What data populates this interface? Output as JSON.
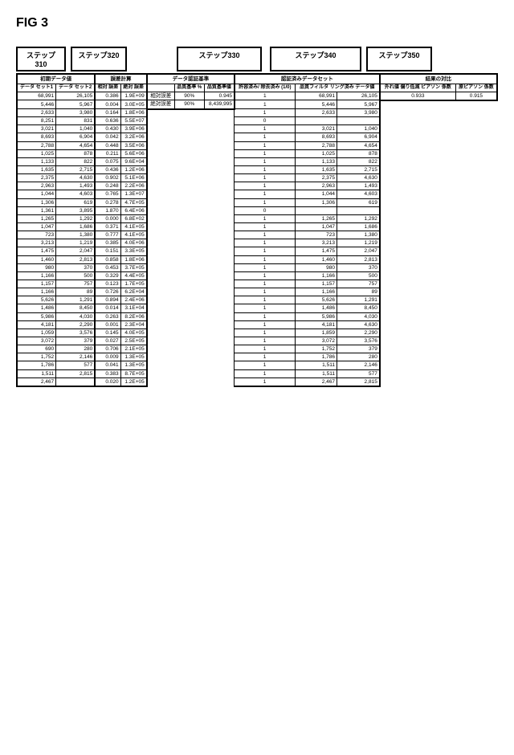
{
  "figLabel": "FIG 3",
  "steps": {
    "s310": "ステップ310",
    "s320": "ステップ320",
    "s330": "ステップ330",
    "s340": "ステップ340",
    "s350": "ステップ350"
  },
  "groupHeaders": {
    "g1": "初期データ値",
    "g2": "誤差計算",
    "g3": "データ認証基準",
    "g4": "認証済みデータセット",
    "g5": "結果の対比"
  },
  "colHeaders": {
    "c1": "データ\nセット1",
    "c2": "データ\nセット2",
    "c3": "相対\n誤差",
    "c4": "絶対\n誤差",
    "c5": "",
    "c6": "品質基準\n%",
    "c7": "品質基準値",
    "c8": "許容済み/\n除去済み\n(1/0)",
    "c9": "品質フィルタ\nリング済み\nデータ値",
    "c10": "",
    "c11": "外れ値\n偏り低減\nピアソン\n係数",
    "c12": "原ピアソン\n係数"
  },
  "criteria": {
    "relLabel": "相対誤差",
    "absLabel": "絶対誤差",
    "relPct": "90%",
    "absPct": "90%",
    "relVal": "0.945",
    "absVal": "8,439,995"
  },
  "pearson": {
    "reduced": "0.933",
    "original": "0.915"
  },
  "rows": [
    {
      "d1": "68,991",
      "d2": "26,105",
      "re": "0.386",
      "ae": "1.9E+09",
      "acc": "1",
      "f1": "68,991",
      "f2": "26,105"
    },
    {
      "d1": "5,446",
      "d2": "5,967",
      "re": "0.004",
      "ae": "3.0E+05",
      "acc": "1",
      "f1": "5,446",
      "f2": "5,967"
    },
    {
      "d1": "2,633",
      "d2": "3,980",
      "re": "0.164",
      "ae": "1.8E+06",
      "acc": "1",
      "f1": "2,633",
      "f2": "3,980"
    },
    {
      "d1": "8,251",
      "d2": "831",
      "re": "0.636",
      "ae": "5.5E+07",
      "acc": "0",
      "f1": "",
      "f2": ""
    },
    {
      "d1": "3,021",
      "d2": "1,040",
      "re": "0.430",
      "ae": "3.9E+06",
      "acc": "1",
      "f1": "3,021",
      "f2": "1,040"
    },
    {
      "d1": "8,693",
      "d2": "6,904",
      "re": "0.042",
      "ae": "3.2E+06",
      "acc": "1",
      "f1": "8,693",
      "f2": "6,904"
    },
    {
      "d1": "2,788",
      "d2": "4,654",
      "re": "0.448",
      "ae": "3.5E+06",
      "acc": "1",
      "f1": "2,788",
      "f2": "4,654"
    },
    {
      "d1": "1,025",
      "d2": "878",
      "re": "0.211",
      "ae": "5.6E+06",
      "acc": "1",
      "f1": "1,025",
      "f2": "878"
    },
    {
      "d1": "1,133",
      "d2": "822",
      "re": "0.075",
      "ae": "9.6E+04",
      "acc": "1",
      "f1": "1,133",
      "f2": "822"
    },
    {
      "d1": "1,635",
      "d2": "2,715",
      "re": "0.436",
      "ae": "1.2E+06",
      "acc": "1",
      "f1": "1,635",
      "f2": "2,715"
    },
    {
      "d1": "2,375",
      "d2": "4,630",
      "re": "0.902",
      "ae": "5.1E+06",
      "acc": "1",
      "f1": "2,375",
      "f2": "4,630"
    },
    {
      "d1": "2,963",
      "d2": "1,493",
      "re": "0.248",
      "ae": "2.2E+06",
      "acc": "1",
      "f1": "2,963",
      "f2": "1,493"
    },
    {
      "d1": "1,044",
      "d2": "4,603",
      "re": "0.765",
      "ae": "1.3E+07",
      "acc": "1",
      "f1": "1,044",
      "f2": "4,603"
    },
    {
      "d1": "1,306",
      "d2": "619",
      "re": "0.278",
      "ae": "4.7E+05",
      "acc": "1",
      "f1": "1,306",
      "f2": "619"
    },
    {
      "d1": "1,361",
      "d2": "3,895",
      "re": "1.870",
      "ae": "6.4E+06",
      "acc": "0",
      "f1": "",
      "f2": ""
    },
    {
      "d1": "1,265",
      "d2": "1,292",
      "re": "0.000",
      "ae": "6.8E+02",
      "acc": "1",
      "f1": "1,265",
      "f2": "1,292"
    },
    {
      "d1": "1,047",
      "d2": "1,686",
      "re": "0.371",
      "ae": "4.1E+05",
      "acc": "1",
      "f1": "1,047",
      "f2": "1,686"
    },
    {
      "d1": "723",
      "d2": "1,380",
      "re": "0.777",
      "ae": "4.1E+05",
      "acc": "1",
      "f1": "723",
      "f2": "1,380"
    },
    {
      "d1": "3,213",
      "d2": "1,219",
      "re": "0.385",
      "ae": "4.0E+06",
      "acc": "1",
      "f1": "3,213",
      "f2": "1,219"
    },
    {
      "d1": "1,475",
      "d2": "2,047",
      "re": "0.151",
      "ae": "3.3E+05",
      "acc": "1",
      "f1": "1,475",
      "f2": "2,047"
    },
    {
      "d1": "1,460",
      "d2": "2,813",
      "re": "0.858",
      "ae": "1.8E+06",
      "acc": "1",
      "f1": "1,460",
      "f2": "2,813"
    },
    {
      "d1": "980",
      "d2": "370",
      "re": "0.453",
      "ae": "3.7E+05",
      "acc": "1",
      "f1": "980",
      "f2": "370"
    },
    {
      "d1": "1,166",
      "d2": "500",
      "re": "0.329",
      "ae": "4.4E+05",
      "acc": "1",
      "f1": "1,166",
      "f2": "500"
    },
    {
      "d1": "1,157",
      "d2": "757",
      "re": "0.123",
      "ae": "1.7E+05",
      "acc": "1",
      "f1": "1,157",
      "f2": "757"
    },
    {
      "d1": "1,166",
      "d2": "89",
      "re": "0.726",
      "ae": "6.2E+04",
      "acc": "1",
      "f1": "1,166",
      "f2": "89"
    },
    {
      "d1": "5,626",
      "d2": "1,291",
      "re": "0.894",
      "ae": "2.4E+06",
      "acc": "1",
      "f1": "5,626",
      "f2": "1,291"
    },
    {
      "d1": "1,486",
      "d2": "8,450",
      "re": "0.014",
      "ae": "3.1E+04",
      "acc": "1",
      "f1": "1,486",
      "f2": "8,450"
    },
    {
      "d1": "5,986",
      "d2": "4,030",
      "re": "0.263",
      "ae": "8.2E+06",
      "acc": "1",
      "f1": "5,986",
      "f2": "4,030"
    },
    {
      "d1": "4,181",
      "d2": "2,290",
      "re": "0.001",
      "ae": "2.3E+04",
      "acc": "1",
      "f1": "4,181",
      "f2": "4,630"
    },
    {
      "d1": "1,059",
      "d2": "3,576",
      "re": "0.145",
      "ae": "4.0E+05",
      "acc": "1",
      "f1": "1,859",
      "f2": "2,290"
    },
    {
      "d1": "3,072",
      "d2": "379",
      "re": "0.027",
      "ae": "2.5E+05",
      "acc": "1",
      "f1": "3,072",
      "f2": "3,576"
    },
    {
      "d1": "690",
      "d2": "280",
      "re": "0.706",
      "ae": "2.1E+05",
      "acc": "1",
      "f1": "1,752",
      "f2": "379"
    },
    {
      "d1": "1,752",
      "d2": "2,146",
      "re": "0.009",
      "ae": "1.3E+05",
      "acc": "1",
      "f1": "1,786",
      "f2": "280"
    },
    {
      "d1": "1,786",
      "d2": "577",
      "re": "0.041",
      "ae": "1.3E+05",
      "acc": "1",
      "f1": "1,511",
      "f2": "2,146"
    },
    {
      "d1": "1,511",
      "d2": "2,815",
      "re": "0.383",
      "ae": "8.7E+05",
      "acc": "1",
      "f1": "1,511",
      "f2": "577"
    },
    {
      "d1": "2,467",
      "d2": "",
      "re": "0.020",
      "ae": "1.2E+05",
      "acc": "1",
      "f1": "2,467",
      "f2": "2,815"
    }
  ]
}
